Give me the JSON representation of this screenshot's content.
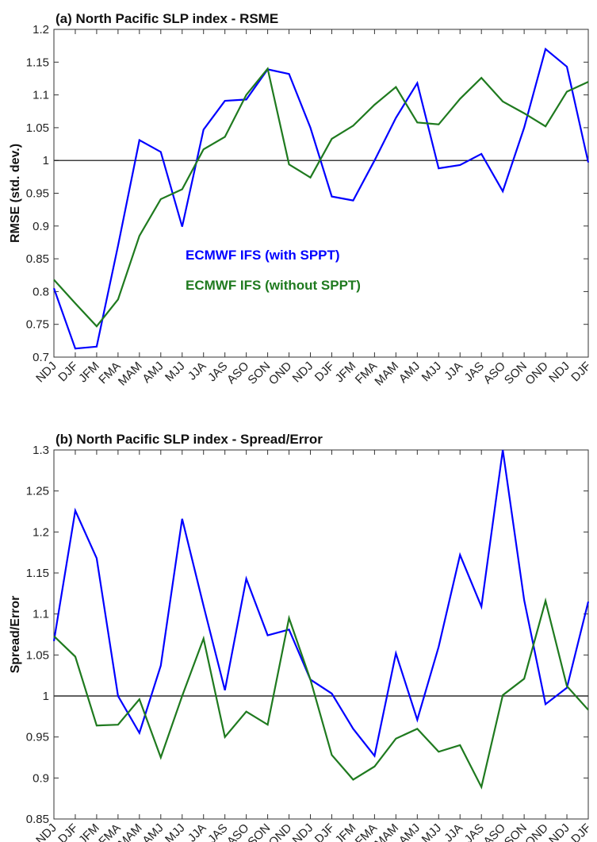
{
  "chart_data": [
    {
      "type": "line",
      "title": "(a) North Pacific SLP index - RSME",
      "y_label": "RMSE (std. dev.)",
      "categories": [
        "NDJ",
        "DJF",
        "JFM",
        "FMA",
        "MAM",
        "AMJ",
        "MJJ",
        "JJA",
        "JAS",
        "ASO",
        "SON",
        "OND",
        "NDJ",
        "DJF",
        "JFM",
        "FMA",
        "MAM",
        "AMJ",
        "MJJ",
        "JJA",
        "JAS",
        "ASO",
        "SON",
        "OND",
        "NDJ",
        "DJF"
      ],
      "series": [
        {
          "name": "ECMWF IFS (with SPPT)",
          "color": "#0000ff",
          "values": [
            0.805,
            0.713,
            0.716,
            0.87,
            1.031,
            1.013,
            0.899,
            1.047,
            1.091,
            1.093,
            1.139,
            1.132,
            1.05,
            0.945,
            0.939,
            1.0,
            1.065,
            1.118,
            0.988,
            0.993,
            1.01,
            0.953,
            1.05,
            1.17,
            1.143,
            0.997
          ]
        },
        {
          "name": "ECMWF IFS (without SPPT)",
          "color": "#1f7a1f",
          "values": [
            0.818,
            0.782,
            0.747,
            0.788,
            0.885,
            0.941,
            0.956,
            1.017,
            1.036,
            1.1,
            1.14,
            0.994,
            0.974,
            1.033,
            1.053,
            1.085,
            1.112,
            1.058,
            1.055,
            1.094,
            1.126,
            1.09,
            1.072,
            1.052,
            1.105,
            1.12
          ]
        }
      ],
      "ylim": [
        0.7,
        1.2
      ],
      "yticks": [
        0.7,
        0.75,
        0.8,
        0.85,
        0.9,
        0.95,
        1,
        1.05,
        1.1,
        1.15,
        1.2
      ],
      "hline": 1,
      "legend": true
    },
    {
      "type": "line",
      "title": "(b) North Pacific SLP index - Spread/Error",
      "y_label": "Spread/Error",
      "categories": [
        "NDJ",
        "DJF",
        "JFM",
        "FMA",
        "MAM",
        "AMJ",
        "MJJ",
        "JJA",
        "JAS",
        "ASO",
        "SON",
        "OND",
        "NDJ",
        "DJF",
        "JFM",
        "FMA",
        "MAM",
        "AMJ",
        "MJJ",
        "JJA",
        "JAS",
        "ASO",
        "SON",
        "OND",
        "NDJ",
        "DJF"
      ],
      "series": [
        {
          "color": "#0000ff",
          "values": [
            1.067,
            1.226,
            1.168,
            1.0,
            0.955,
            1.037,
            1.216,
            1.11,
            1.007,
            1.143,
            1.074,
            1.081,
            1.02,
            1.003,
            0.96,
            0.927,
            1.052,
            0.971,
            1.06,
            1.172,
            1.109,
            1.3,
            1.117,
            0.99,
            1.01,
            1.115
          ]
        },
        {
          "color": "#1f7a1f",
          "values": [
            1.073,
            1.048,
            0.964,
            0.965,
            0.996,
            0.925,
            1.0,
            1.07,
            0.95,
            0.981,
            0.965,
            1.095,
            1.02,
            0.928,
            0.898,
            0.914,
            0.948,
            0.96,
            0.932,
            0.94,
            0.889,
            1.001,
            1.021,
            1.116,
            1.012,
            0.983
          ]
        }
      ],
      "ylim": [
        0.85,
        1.3
      ],
      "yticks": [
        0.85,
        0.9,
        0.95,
        1,
        1.05,
        1.1,
        1.15,
        1.2,
        1.25,
        1.3
      ],
      "hline": 1,
      "legend": false
    }
  ]
}
